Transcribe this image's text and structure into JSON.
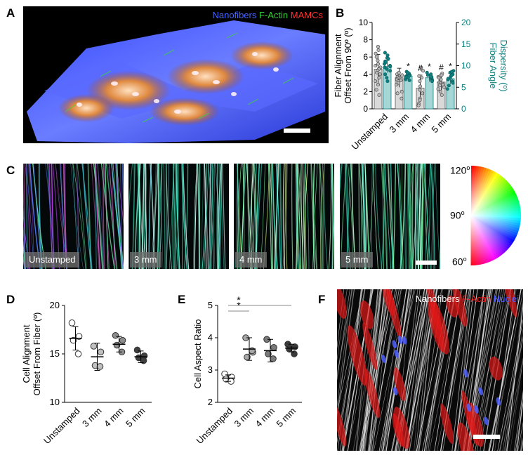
{
  "colors": {
    "gray_bar": "#d9d9d9",
    "teal": "#0f8080",
    "teal_bar": "#a6d7d6",
    "nanofibers": "#4466ff",
    "factin": "#33cc33",
    "mamcs": "#ff3333",
    "nuclei": "#4a5cff"
  },
  "panels": {
    "A": {
      "letter": "A",
      "legend": [
        {
          "text": "Nanofibers",
          "color": "#4466ff"
        },
        {
          "text": "F-Actin",
          "color": "#33cc33"
        },
        {
          "text": "MAMCs",
          "color": "#ff3333"
        }
      ]
    },
    "B": {
      "letter": "B"
    },
    "C": {
      "letter": "C",
      "images": [
        "Unstamped",
        "3 mm",
        "4 mm",
        "5 mm"
      ],
      "wheel_labels": {
        "top": "120",
        "mid": "90",
        "bottom": "60",
        "sup": "o"
      }
    },
    "D": {
      "letter": "D"
    },
    "E": {
      "letter": "E"
    },
    "F": {
      "letter": "F",
      "legend": [
        {
          "text": "Nanofibers",
          "color": "#ffffff"
        },
        {
          "text": "F-Actin",
          "color": "#ff2222"
        },
        {
          "text": "Nuclei",
          "color": "#4a5cff"
        }
      ]
    }
  },
  "chart_data": [
    {
      "panel": "B",
      "type": "bar",
      "categories": [
        "Unstamped",
        "3 mm",
        "4 mm",
        "5 mm"
      ],
      "ylabel_left": "Fiber Alignment\nOffset From 90º (º)",
      "ylabel_right": "Fiber Angle\nDispersity (º)",
      "ylim_left": [
        0,
        10
      ],
      "ylim_right": [
        0,
        20
      ],
      "yticks_left": [
        "0",
        "2",
        "4",
        "6",
        "8",
        "10"
      ],
      "yticks_right": [
        "0",
        "5",
        "10",
        "15",
        "20"
      ],
      "series": [
        {
          "name": "Fiber Alignment Offset From 90º (º)",
          "axis": "left",
          "color": "#d9d9d9",
          "values": [
            4.6,
            3.6,
            2.4,
            3.1
          ],
          "err": [
            1.7,
            1.1,
            1.5,
            0.9
          ],
          "points": [
            [
              7.2,
              6.8,
              6.4,
              6.0,
              5.6,
              5.2,
              5.0,
              4.8,
              4.6,
              4.4,
              4.2,
              4.0,
              3.6,
              3.2,
              2.8,
              2.2,
              1.6
            ],
            [
              4.0,
              3.9,
              3.8,
              3.7,
              3.6,
              3.5,
              3.4,
              3.3,
              3.2,
              3.0,
              2.8,
              2.0,
              1.8,
              1.2,
              4.2
            ],
            [
              4.8,
              4.4,
              3.8,
              3.2,
              2.6,
              2.2,
              1.8,
              1.2,
              1.0,
              0.6,
              0.4,
              3.6
            ],
            [
              4.1,
              3.9,
              3.7,
              3.5,
              3.3,
              3.1,
              3.0,
              2.9,
              2.8,
              2.7,
              2.5,
              2.3,
              2.0,
              1.6,
              3.4,
              3.6
            ]
          ],
          "marks": [
            "",
            "",
            "#",
            "#"
          ]
        },
        {
          "name": "Fiber Angle Dispersity (º)",
          "axis": "right",
          "color": "#0f8080",
          "values": [
            9.8,
            7.6,
            7.2,
            7.0
          ],
          "err": [
            1.4,
            0.6,
            0.9,
            1.2
          ],
          "points": [
            [
              13.0,
              12.4,
              11.8,
              11.0,
              10.4,
              10.0,
              9.8,
              9.6,
              9.2,
              8.8,
              8.0,
              7.2,
              6.4,
              11.6,
              10.8
            ],
            [
              8.6,
              8.2,
              8.0,
              7.8,
              7.6,
              7.5,
              7.4,
              7.2,
              7.0,
              6.8,
              8.4,
              6.6
            ],
            [
              8.4,
              7.8,
              7.2,
              6.8,
              6.6,
              6.4,
              7.4,
              8.0
            ],
            [
              8.8,
              8.4,
              8.0,
              7.6,
              7.2,
              6.8,
              6.4,
              6.0,
              5.4,
              4.6,
              7.0,
              7.8,
              8.6
            ]
          ],
          "marks": [
            "",
            "*",
            "*",
            "*"
          ]
        }
      ]
    },
    {
      "panel": "D",
      "type": "scatter",
      "categories": [
        "Unstamped",
        "3 mm",
        "4 mm",
        "5 mm"
      ],
      "ylabel": "Cell Alignment\nOffset From Fiber (º)",
      "ylim": [
        10,
        20
      ],
      "yticks": [
        "10",
        "15",
        "20"
      ],
      "means": [
        16.6,
        14.7,
        16.0,
        14.7
      ],
      "sd": [
        1.2,
        1.4,
        0.8,
        0.6
      ],
      "points": [
        [
          18.2,
          16.8,
          16.4,
          15.0
        ],
        [
          15.8,
          15.2,
          13.8,
          13.7
        ],
        [
          16.9,
          16.4,
          15.9,
          15.2
        ],
        [
          15.4,
          14.8,
          14.6,
          14.3
        ]
      ],
      "colors": [
        "#ffffff",
        "#c0c0c0",
        "#8c8c8c",
        "#404040"
      ]
    },
    {
      "panel": "E",
      "type": "scatter",
      "categories": [
        "Unstamped",
        "3 mm",
        "4 mm",
        "5 mm"
      ],
      "ylabel": "Cell Aspect Ratio",
      "ylim": [
        2,
        5
      ],
      "yticks": [
        "2",
        "3",
        "4",
        "5"
      ],
      "means": [
        2.75,
        3.65,
        3.6,
        3.68
      ],
      "sd": [
        0.1,
        0.35,
        0.35,
        0.12
      ],
      "points": [
        [
          2.88,
          2.78,
          2.72,
          2.65
        ],
        [
          4.0,
          3.55,
          3.4,
          3.6
        ],
        [
          3.95,
          3.7,
          3.5,
          3.35
        ],
        [
          3.8,
          3.72,
          3.65,
          3.5
        ]
      ],
      "colors": [
        "#ffffff",
        "#a8a8a8",
        "#7a7a7a",
        "#3a3a3a"
      ],
      "significance": [
        {
          "from": 0,
          "to": 1,
          "label": "*"
        },
        {
          "from": 0,
          "to": 3,
          "label": "*"
        }
      ]
    }
  ]
}
